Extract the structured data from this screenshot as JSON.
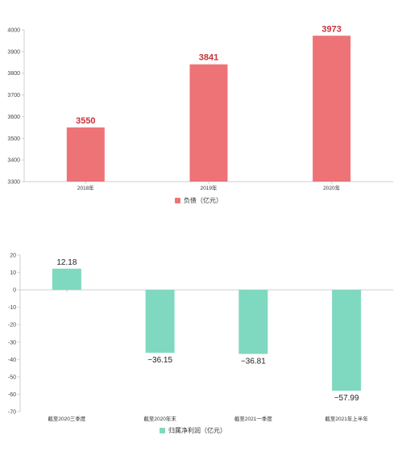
{
  "chart_data": [
    {
      "type": "bar",
      "categories": [
        "2018年",
        "2019年",
        "2020年"
      ],
      "series": [
        {
          "name": "负债（亿元）",
          "values": [
            3550,
            3841,
            3973
          ]
        }
      ],
      "data_labels": [
        "3550",
        "3841",
        "3973"
      ],
      "ylim": [
        3300,
        4000
      ],
      "yticks": [
        3300,
        3400,
        3500,
        3600,
        3700,
        3800,
        3900,
        4000
      ],
      "grid": false,
      "legend": "bottom-center",
      "colors": {
        "bar": "#ee7376",
        "label": "#c8323a"
      }
    },
    {
      "type": "bar",
      "categories": [
        "截至2020三季度",
        "截至2020年末",
        "截至2021一季度",
        "截至2021年上半年"
      ],
      "series": [
        {
          "name": "归属净利润（亿元）",
          "values": [
            12.18,
            -36.15,
            -36.81,
            -57.99
          ]
        }
      ],
      "data_labels": [
        "12.18",
        "−36.15",
        "−36.81",
        "−57.99"
      ],
      "ylim": [
        -70,
        20
      ],
      "yticks": [
        20,
        10,
        0,
        -10,
        -20,
        -30,
        -40,
        -50,
        -60,
        -70
      ],
      "grid": false,
      "legend": "bottom-center",
      "colors": {
        "bar": "#7fd8c0",
        "label": "#222222"
      }
    }
  ]
}
